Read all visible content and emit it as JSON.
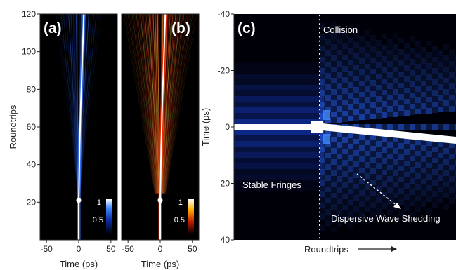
{
  "chart_data": [
    {
      "type": "heatmap",
      "panel_label": "(a)",
      "xlabel": "Time (ps)",
      "ylabel": "Roundtrips",
      "xlim": [
        -60,
        60
      ],
      "ylim": [
        0,
        120
      ],
      "x_ticks": [
        -50,
        0,
        50
      ],
      "y_ticks": [
        20,
        40,
        60,
        80,
        100,
        120
      ],
      "colormap": "black-blue-white",
      "colorbar_ticks": [
        "1",
        "0.5"
      ],
      "features": {
        "collision_roundtrip": 21,
        "main_trace_points": [
          [
            0,
            0
          ],
          [
            0,
            21
          ],
          [
            0.5,
            30
          ],
          [
            1.5,
            50
          ],
          [
            3,
            70
          ],
          [
            5,
            90
          ],
          [
            7,
            110
          ],
          [
            8,
            120
          ]
        ]
      }
    },
    {
      "type": "heatmap",
      "panel_label": "(b)",
      "xlabel": "Time (ps)",
      "xlim": [
        -60,
        60
      ],
      "ylim": [
        0,
        120
      ],
      "x_ticks": [
        -50,
        0,
        50
      ],
      "colormap": "black-red-yellow-white",
      "colorbar_ticks": [
        "1",
        "0.5"
      ],
      "features": {
        "collision_roundtrip": 21,
        "main_trace_points": [
          [
            0,
            0
          ],
          [
            0,
            21
          ],
          [
            0.5,
            30
          ],
          [
            1.5,
            50
          ],
          [
            3,
            70
          ],
          [
            5,
            90
          ],
          [
            7,
            110
          ],
          [
            8,
            120
          ]
        ]
      }
    },
    {
      "type": "heatmap",
      "panel_label": "(c)",
      "xlabel": "Roundtrips",
      "ylabel": "Time (ps)",
      "ylim": [
        -40,
        40
      ],
      "y_ticks": [
        -40,
        -20,
        0,
        20,
        40
      ],
      "y_inverted": true,
      "colormap": "black-blue-white",
      "annotations": [
        "Collision",
        "Stable Fringes",
        "Dispersive Wave Shedding"
      ]
    }
  ],
  "colors": {
    "background": "#000000",
    "blue_trace": "#ffffff",
    "blue_fringe": "#2f6bff",
    "red_fringe": "#d42400",
    "yellow_fringe": "#ffe14a"
  }
}
